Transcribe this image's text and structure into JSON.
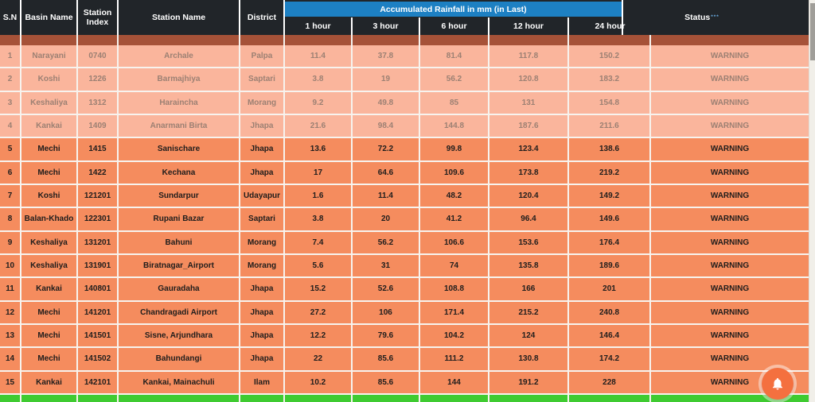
{
  "header": {
    "columns": [
      "S.N",
      "Basin Name",
      "Station Index",
      "Station Name",
      "District"
    ],
    "rainfall_group_title": "Accumulated Rainfall in mm (in Last)",
    "rainfall_columns": [
      "1 hour",
      "3 hour",
      "6 hour",
      "12 hour",
      "24 hour"
    ],
    "status_label": "Status",
    "status_superscript": "***"
  },
  "table": {
    "rows": [
      {
        "sn": "1",
        "basin": "Narayani",
        "station_index": "0740",
        "station_name": "Archale",
        "district": "Palpa",
        "h1": "11.4",
        "h3": "37.8",
        "h6": "81.4",
        "h12": "117.8",
        "h24": "150.2",
        "status": "WARNING",
        "highlight": false
      },
      {
        "sn": "2",
        "basin": "Koshi",
        "station_index": "1226",
        "station_name": "Barmajhiya",
        "district": "Saptari",
        "h1": "3.8",
        "h3": "19",
        "h6": "56.2",
        "h12": "120.8",
        "h24": "183.2",
        "status": "WARNING",
        "highlight": false
      },
      {
        "sn": "3",
        "basin": "Keshaliya",
        "station_index": "1312",
        "station_name": "Haraincha",
        "district": "Morang",
        "h1": "9.2",
        "h3": "49.8",
        "h6": "85",
        "h12": "131",
        "h24": "154.8",
        "status": "WARNING",
        "highlight": false
      },
      {
        "sn": "4",
        "basin": "Kankai",
        "station_index": "1409",
        "station_name": "Anarmani Birta",
        "district": "Jhapa",
        "h1": "21.6",
        "h3": "98.4",
        "h6": "144.8",
        "h12": "187.6",
        "h24": "211.6",
        "status": "WARNING",
        "highlight": false
      },
      {
        "sn": "5",
        "basin": "Mechi",
        "station_index": "1415",
        "station_name": "Sanischare",
        "district": "Jhapa",
        "h1": "13.6",
        "h3": "72.2",
        "h6": "99.8",
        "h12": "123.4",
        "h24": "138.6",
        "status": "WARNING",
        "highlight": true
      },
      {
        "sn": "6",
        "basin": "Mechi",
        "station_index": "1422",
        "station_name": "Kechana",
        "district": "Jhapa",
        "h1": "17",
        "h3": "64.6",
        "h6": "109.6",
        "h12": "173.8",
        "h24": "219.2",
        "status": "WARNING",
        "highlight": true
      },
      {
        "sn": "7",
        "basin": "Koshi",
        "station_index": "121201",
        "station_name": "Sundarpur",
        "district": "Udayapur",
        "h1": "1.6",
        "h3": "11.4",
        "h6": "48.2",
        "h12": "120.4",
        "h24": "149.2",
        "status": "WARNING",
        "highlight": true
      },
      {
        "sn": "8",
        "basin": "Balan-Khado",
        "station_index": "122301",
        "station_name": "Rupani Bazar",
        "district": "Saptari",
        "h1": "3.8",
        "h3": "20",
        "h6": "41.2",
        "h12": "96.4",
        "h24": "149.6",
        "status": "WARNING",
        "highlight": true
      },
      {
        "sn": "9",
        "basin": "Keshaliya",
        "station_index": "131201",
        "station_name": "Bahuni",
        "district": "Morang",
        "h1": "7.4",
        "h3": "56.2",
        "h6": "106.6",
        "h12": "153.6",
        "h24": "176.4",
        "status": "WARNING",
        "highlight": true
      },
      {
        "sn": "10",
        "basin": "Keshaliya",
        "station_index": "131901",
        "station_name": "Biratnagar_Airport",
        "district": "Morang",
        "h1": "5.6",
        "h3": "31",
        "h6": "74",
        "h12": "135.8",
        "h24": "189.6",
        "status": "WARNING",
        "highlight": true
      },
      {
        "sn": "11",
        "basin": "Kankai",
        "station_index": "140801",
        "station_name": "Gauradaha",
        "district": "Jhapa",
        "h1": "15.2",
        "h3": "52.6",
        "h6": "108.8",
        "h12": "166",
        "h24": "201",
        "status": "WARNING",
        "highlight": true
      },
      {
        "sn": "12",
        "basin": "Mechi",
        "station_index": "141201",
        "station_name": "Chandragadi Airport",
        "district": "Jhapa",
        "h1": "27.2",
        "h3": "106",
        "h6": "171.4",
        "h12": "215.2",
        "h24": "240.8",
        "status": "WARNING",
        "highlight": true
      },
      {
        "sn": "13",
        "basin": "Mechi",
        "station_index": "141501",
        "station_name": "Sisne, Arjundhara",
        "district": "Jhapa",
        "h1": "12.2",
        "h3": "79.6",
        "h6": "104.2",
        "h12": "124",
        "h24": "146.4",
        "status": "WARNING",
        "highlight": true
      },
      {
        "sn": "14",
        "basin": "Mechi",
        "station_index": "141502",
        "station_name": "Bahundangi",
        "district": "Jhapa",
        "h1": "22",
        "h3": "85.6",
        "h6": "111.2",
        "h12": "130.8",
        "h24": "174.2",
        "status": "WARNING",
        "highlight": true
      },
      {
        "sn": "15",
        "basin": "Kankai",
        "station_index": "142101",
        "station_name": "Kankai, Mainachuli",
        "district": "Ilam",
        "h1": "10.2",
        "h3": "85.6",
        "h6": "144",
        "h12": "191.2",
        "h24": "228",
        "status": "WARNING",
        "highlight": true
      }
    ]
  },
  "widgets": {
    "notification_button_icon": "bell-icon"
  },
  "colors": {
    "header_bg": "#212529",
    "banner_blue": "#1d80c3",
    "row_recent_bg": "#fab59c",
    "row_recent_text": "#9c8073",
    "row_older_bg": "#f58c5e",
    "row_older_text": "#1f1d1c",
    "partial_top_brown": "#a65238",
    "partial_bottom_green": "#3fcb31",
    "fab_orange": "#f4703f"
  }
}
